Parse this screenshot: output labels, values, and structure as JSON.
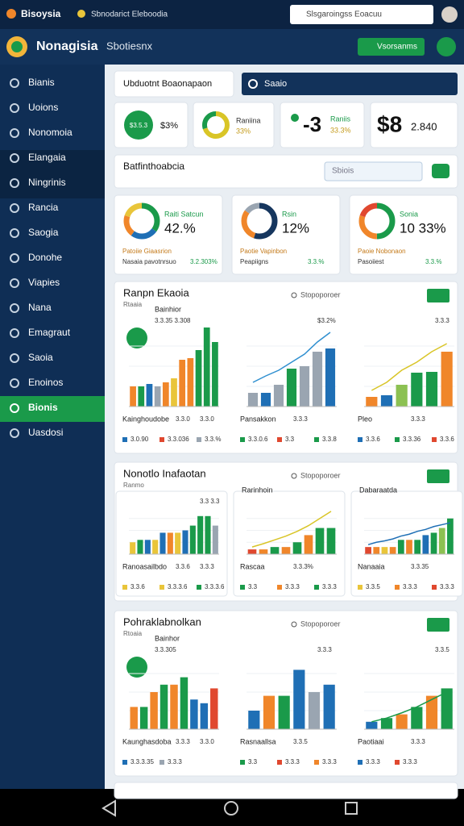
{
  "browser": {
    "app": "Bisoysia",
    "tab": "Sbnodarict Eleboodia",
    "search": "Slsgaroingss Eoacuu"
  },
  "header": {
    "title": "Nonagisia",
    "subtitle": "Sbotiesnx",
    "button": "Vsorsanms"
  },
  "sidebar": {
    "active": 13,
    "items": [
      "Bianis",
      "Uoions",
      "Nonomoia",
      "Elangaia",
      "Ningrinis",
      "Rancia",
      "Saogia",
      "Donohe",
      "Viapies",
      "Nana",
      "Emagraut",
      "Saoia",
      "Enoinos",
      "Bionis",
      "Uasdosi"
    ]
  },
  "toolbar": {
    "tab": "Ubduotnt Boaonapaon",
    "search": "Saaio",
    "filter_title": "Batfinthoabcia",
    "filter_input": "Sbiois"
  },
  "kpis": [
    {
      "circle_text": "$3.5.3",
      "value": "$3%"
    },
    {
      "label": "Raniina",
      "value": "33%",
      "donut": [
        {
          "value": 70,
          "color": "#d9c527"
        },
        {
          "value": 30,
          "color": "#1a9a4a"
        }
      ]
    },
    {
      "value": "-3",
      "label": "Raniis",
      "sub": "33.3%"
    },
    {
      "value": "$8",
      "sub": "2.840"
    }
  ],
  "donut_cards": [
    {
      "label": "Raiti Satcun",
      "value": "42.%",
      "caption": "Patoiie Giaasrion",
      "footer": "Nasaia pavotnrsuo",
      "footer_value": "3.2.303%",
      "segments": [
        {
          "value": 35,
          "color": "#1a9a4a"
        },
        {
          "value": 25,
          "color": "#1f6fb5"
        },
        {
          "value": 20,
          "color": "#f0862a"
        },
        {
          "value": 20,
          "color": "#e9c53a"
        }
      ]
    },
    {
      "label": "Rsin",
      "value": "12%",
      "caption": "Paotie Vapinbon",
      "footer": "Peapiigns",
      "footer_value": "3.3.%",
      "segments": [
        {
          "value": 55,
          "color": "#16365e"
        },
        {
          "value": 30,
          "color": "#f0862a"
        },
        {
          "value": 15,
          "color": "#9aa5b1"
        }
      ]
    },
    {
      "label": "Sonia",
      "value": "10 33%",
      "caption": "Paoie Nobonaon",
      "footer": "Pasoiiest",
      "footer_value": "3.3.%",
      "segments": [
        {
          "value": 50,
          "color": "#1a9a4a"
        },
        {
          "value": 30,
          "color": "#f0862a"
        },
        {
          "value": 20,
          "color": "#e0482f"
        }
      ]
    }
  ],
  "sections": [
    {
      "title": "Ranpn Ekaoia",
      "subtitle": "Rtaaia",
      "control": "Stopoporoer",
      "panels": [
        {
          "title": "Bainhior",
          "note": "3.3.35 3.308",
          "ylim": [
            0,
            100
          ],
          "bars": [
            {
              "value": 25,
              "color": "#f0862a"
            },
            {
              "value": 25,
              "color": "#1a9a4a"
            },
            {
              "value": 28,
              "color": "#1f6fb5"
            },
            {
              "value": 25,
              "color": "#9aa5b1"
            },
            {
              "value": 30,
              "color": "#f0862a"
            },
            {
              "value": 35,
              "color": "#e9c53a"
            },
            {
              "value": 58,
              "color": "#f0862a"
            },
            {
              "value": 60,
              "color": "#f0862a"
            },
            {
              "value": 70,
              "color": "#1a9a4a"
            },
            {
              "value": 98,
              "color": "#1a9a4a"
            },
            {
              "value": 80,
              "color": "#1a9a4a"
            }
          ],
          "caption": "Kainghoudobe",
          "caption_values": [
            "3.3.0",
            "3.3.0"
          ],
          "legend": [
            {
              "label": "3.0.90",
              "color": "#1f6fb5"
            },
            {
              "label": "3.3.036",
              "color": "#e0482f"
            },
            {
              "label": "3.3.%",
              "color": "#9aa5b1"
            }
          ]
        },
        {
          "note": "$3.2%",
          "ylim": [
            0,
            100
          ],
          "bars": [
            {
              "value": 17,
              "color": "#9aa5b1"
            },
            {
              "value": 17,
              "color": "#1f6fb5"
            },
            {
              "value": 27,
              "color": "#9aa5b1"
            },
            {
              "value": 47,
              "color": "#1a9a4a"
            },
            {
              "value": 50,
              "color": "#9aa5b1"
            },
            {
              "value": 68,
              "color": "#9aa5b1"
            },
            {
              "value": 72,
              "color": "#1f6fb5"
            }
          ],
          "line": [
            30,
            38,
            45,
            55,
            65,
            80,
            92
          ],
          "line_color": "#2f8fd0",
          "caption": "Pansakkon",
          "caption_values": [
            "3.3.3"
          ],
          "legend": [
            {
              "label": "3.3.0.6",
              "color": "#1a9a4a"
            },
            {
              "label": "3.3",
              "color": "#e0482f"
            },
            {
              "label": "3.3.8",
              "color": "#1a9a4a"
            }
          ]
        },
        {
          "note": "3.3.3",
          "ylim": [
            0,
            100
          ],
          "bars": [
            {
              "value": 12,
              "color": "#f0862a"
            },
            {
              "value": 14,
              "color": "#1f6fb5"
            },
            {
              "value": 27,
              "color": "#8cc152"
            },
            {
              "value": 42,
              "color": "#1a9a4a"
            },
            {
              "value": 43,
              "color": "#1a9a4a"
            },
            {
              "value": 68,
              "color": "#f0862a"
            }
          ],
          "line": [
            20,
            30,
            45,
            55,
            68,
            78
          ],
          "line_color": "#d9c527",
          "caption": "Pleo",
          "caption_values": [
            "3.3.3"
          ],
          "legend": [
            {
              "label": "3.3.6",
              "color": "#1f6fb5"
            },
            {
              "label": "3.3.36",
              "color": "#1a9a4a"
            },
            {
              "label": "3.3.6",
              "color": "#e0482f"
            }
          ]
        }
      ]
    },
    {
      "title": "Nonotlo Inafaotan",
      "subtitle": "Ranmo",
      "control": "Stopoporoer",
      "panels": [
        {
          "note": "3.3 3.3",
          "ylim": [
            0,
            100
          ],
          "bars": [
            {
              "value": 25,
              "color": "#e9c53a"
            },
            {
              "value": 30,
              "color": "#1a9a4a"
            },
            {
              "value": 30,
              "color": "#1f6fb5"
            },
            {
              "value": 30,
              "color": "#e9c53a"
            },
            {
              "value": 45,
              "color": "#1f6fb5"
            },
            {
              "value": 45,
              "color": "#f0862a"
            },
            {
              "value": 45,
              "color": "#e9c53a"
            },
            {
              "value": 50,
              "color": "#1f6fb5"
            },
            {
              "value": 60,
              "color": "#1a9a4a"
            },
            {
              "value": 80,
              "color": "#1a9a4a"
            },
            {
              "value": 80,
              "color": "#1a9a4a"
            },
            {
              "value": 60,
              "color": "#9aa5b1"
            }
          ],
          "caption": "Ranoasailbdo",
          "caption_values": [
            "3.3.6",
            "3.3.3"
          ],
          "legend": [
            {
              "label": "3.3.6",
              "color": "#e9c53a"
            },
            {
              "label": "3.3.3.6",
              "color": "#e9c53a"
            },
            {
              "label": "3.3.3.6",
              "color": "#1a9a4a"
            }
          ]
        },
        {
          "title": "Rarinhoin",
          "ylim": [
            0,
            100
          ],
          "bars": [
            {
              "value": 10,
              "color": "#e0482f"
            },
            {
              "value": 10,
              "color": "#f0862a"
            },
            {
              "value": 15,
              "color": "#1a9a4a"
            },
            {
              "value": 15,
              "color": "#f0862a"
            },
            {
              "value": 25,
              "color": "#1a9a4a"
            },
            {
              "value": 40,
              "color": "#f0862a"
            },
            {
              "value": 55,
              "color": "#1a9a4a"
            },
            {
              "value": 55,
              "color": "#1a9a4a"
            }
          ],
          "line": [
            15,
            22,
            30,
            38,
            48,
            60,
            75,
            90
          ],
          "line_color": "#d9c527",
          "caption": "Rascaa",
          "caption_values": [
            "3.3.3%"
          ],
          "legend": [
            {
              "label": "3.3",
              "color": "#1a9a4a"
            },
            {
              "label": "3.3.3",
              "color": "#f0862a"
            },
            {
              "label": "3.3.3",
              "color": "#1a9a4a"
            }
          ]
        },
        {
          "title": "Dabaraatda",
          "ylim": [
            0,
            100
          ],
          "bars": [
            {
              "value": 15,
              "color": "#e0482f"
            },
            {
              "value": 15,
              "color": "#f0862a"
            },
            {
              "value": 15,
              "color": "#e9c53a"
            },
            {
              "value": 15,
              "color": "#f0862a"
            },
            {
              "value": 30,
              "color": "#1a9a4a"
            },
            {
              "value": 30,
              "color": "#f0862a"
            },
            {
              "value": 30,
              "color": "#1a9a4a"
            },
            {
              "value": 40,
              "color": "#1f6fb5"
            },
            {
              "value": 45,
              "color": "#1a9a4a"
            },
            {
              "value": 55,
              "color": "#8cc152"
            },
            {
              "value": 75,
              "color": "#1a9a4a"
            }
          ],
          "line": [
            20,
            25,
            28,
            32,
            38,
            42,
            48,
            52,
            58,
            62,
            66
          ],
          "line_color": "#1f6fb5",
          "caption": "Nanaaia",
          "caption_values": [
            "3.3.35"
          ],
          "legend": [
            {
              "label": "3.3.5",
              "color": "#e9c53a"
            },
            {
              "label": "3.3.3",
              "color": "#f0862a"
            },
            {
              "label": "3.3.3",
              "color": "#e0482f"
            }
          ]
        }
      ]
    },
    {
      "title": "Pohraklabnolkan",
      "subtitle": "Rtoaia",
      "control": "Stopoporoer",
      "panels": [
        {
          "title": "Bainhor",
          "note": "3.3.305",
          "ylim": [
            0,
            100
          ],
          "bars": [
            {
              "value": 30,
              "color": "#f0862a"
            },
            {
              "value": 30,
              "color": "#1a9a4a"
            },
            {
              "value": 50,
              "color": "#f0862a"
            },
            {
              "value": 60,
              "color": "#1a9a4a"
            },
            {
              "value": 60,
              "color": "#f0862a"
            },
            {
              "value": 70,
              "color": "#1a9a4a"
            },
            {
              "value": 40,
              "color": "#1f6fb5"
            },
            {
              "value": 35,
              "color": "#1f6fb5"
            },
            {
              "value": 55,
              "color": "#e0482f"
            }
          ],
          "caption": "Kaunghasdoba",
          "caption_values": [
            "3.3.3",
            "3.3.0"
          ],
          "legend": [
            {
              "label": "3.3.3.35",
              "color": "#1f6fb5"
            },
            {
              "label": "3.3.3",
              "color": "#9aa5b1"
            }
          ]
        },
        {
          "note": "3.3.3",
          "ylim": [
            0,
            100
          ],
          "bars": [
            {
              "value": 25,
              "color": "#1f6fb5"
            },
            {
              "value": 45,
              "color": "#f0862a"
            },
            {
              "value": 45,
              "color": "#1a9a4a"
            },
            {
              "value": 80,
              "color": "#1f6fb5"
            },
            {
              "value": 50,
              "color": "#9aa5b1"
            },
            {
              "value": 60,
              "color": "#1f6fb5"
            }
          ],
          "caption": "Rasnaallsa",
          "caption_values": [
            "3.3.5"
          ],
          "legend": [
            {
              "label": "3.3",
              "color": "#1a9a4a"
            },
            {
              "label": "3.3.3",
              "color": "#e0482f"
            },
            {
              "label": "3.3.3",
              "color": "#f0862a"
            }
          ]
        },
        {
          "note": "3.3.5",
          "ylim": [
            0,
            100
          ],
          "bars": [
            {
              "value": 10,
              "color": "#1f6fb5"
            },
            {
              "value": 15,
              "color": "#1a9a4a"
            },
            {
              "value": 20,
              "color": "#f0862a"
            },
            {
              "value": 30,
              "color": "#1a9a4a"
            },
            {
              "value": 45,
              "color": "#f0862a"
            },
            {
              "value": 55,
              "color": "#1a9a4a"
            }
          ],
          "line": [
            10,
            15,
            22,
            30,
            40,
            50
          ],
          "line_color": "#1a9a4a",
          "caption": "Paotiaai",
          "caption_values": [
            "3.3.3"
          ],
          "legend": [
            {
              "label": "3.3.3",
              "color": "#1f6fb5"
            },
            {
              "label": "3.3.3",
              "color": "#e0482f"
            }
          ]
        }
      ]
    }
  ]
}
